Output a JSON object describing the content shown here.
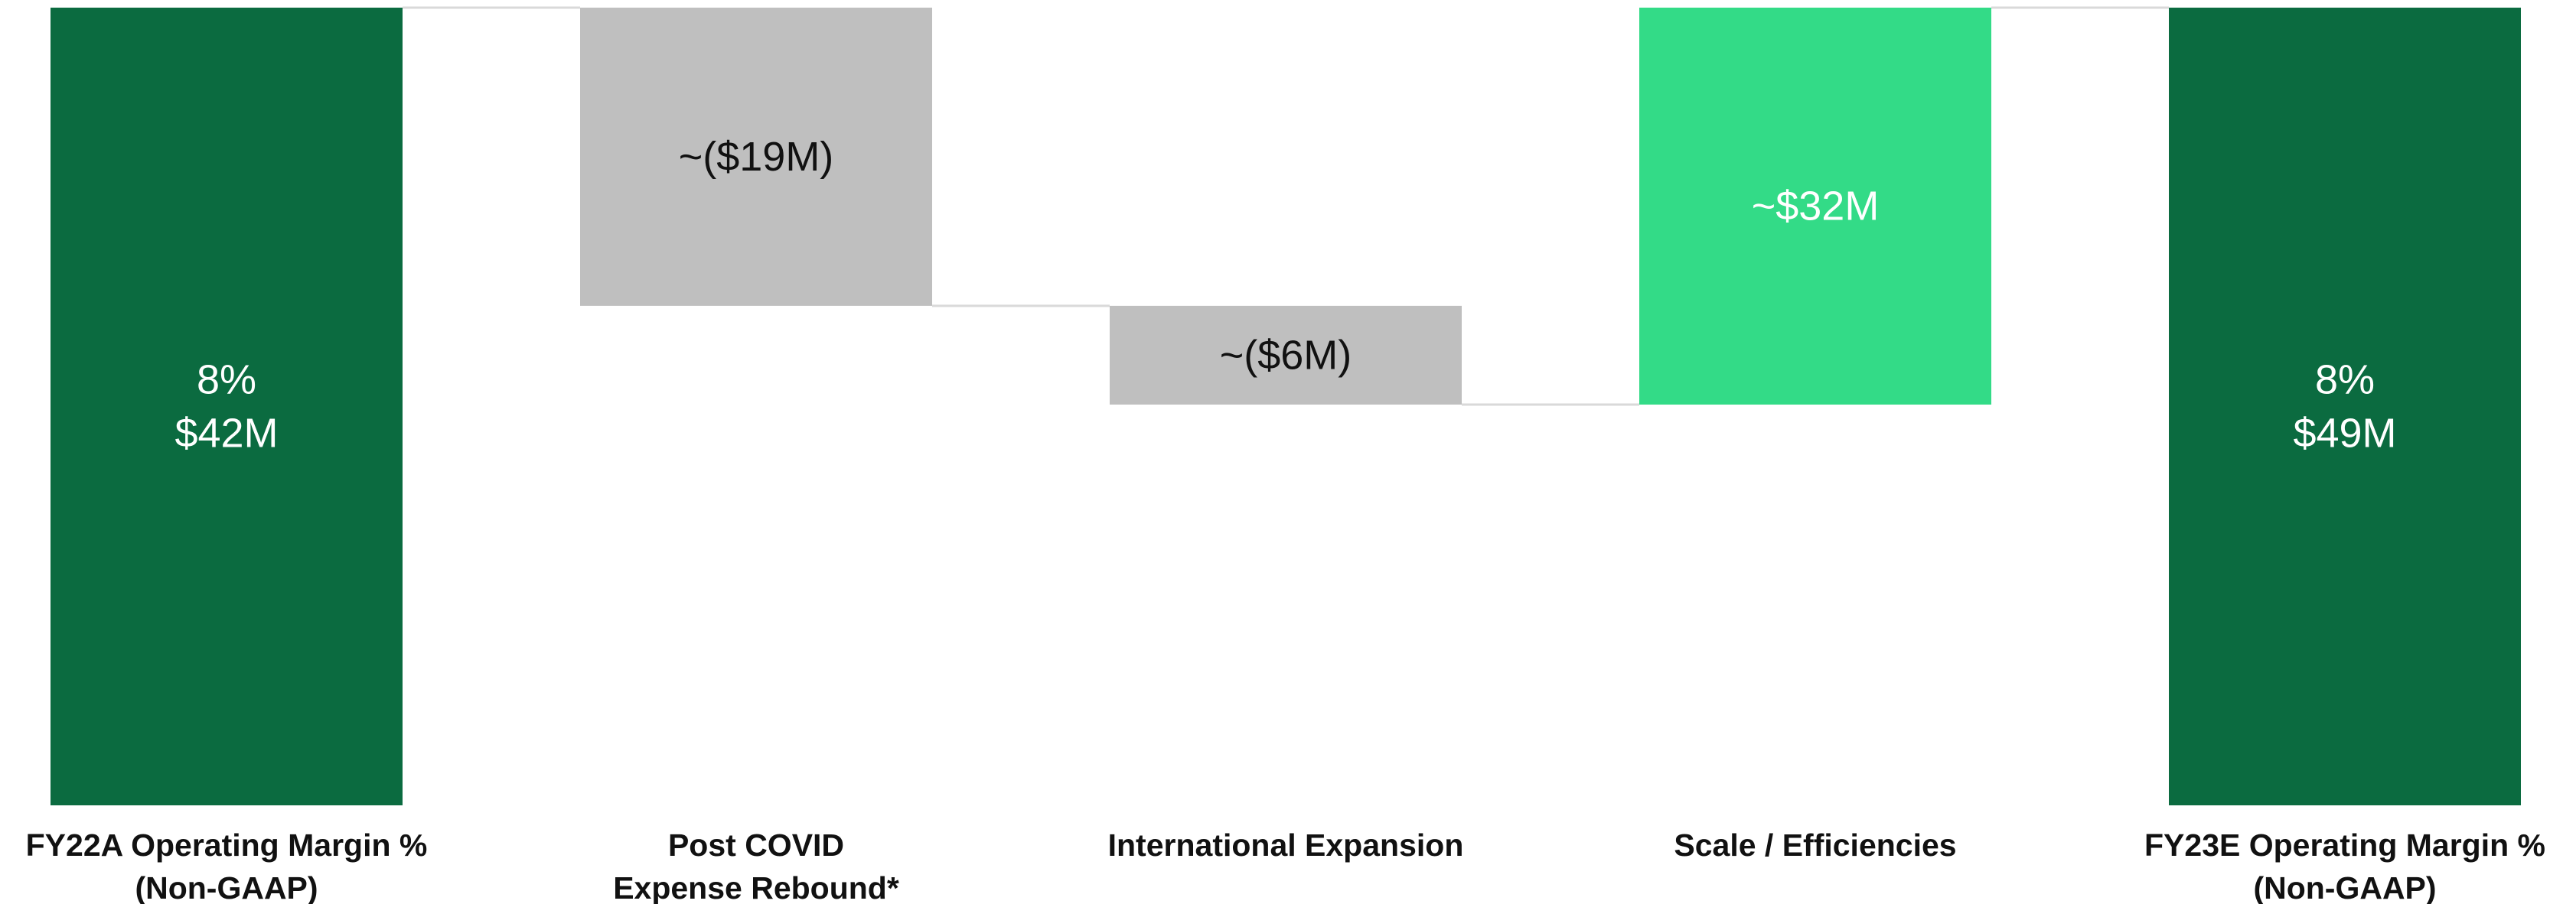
{
  "chart_data": {
    "type": "bar",
    "subtype": "waterfall",
    "categories": [
      [
        "FY22A Operating Margin %",
        "(Non-GAAP)"
      ],
      [
        "Post COVID",
        "Expense Rebound*"
      ],
      [
        "International Expansion"
      ],
      [
        "Scale / Efficiencies"
      ],
      [
        "FY23E Operating Margin %",
        "(Non-GAAP)"
      ]
    ],
    "bars": [
      {
        "kind": "total",
        "start": 0,
        "end": 42,
        "labels": [
          "8%",
          "$42M"
        ],
        "color": "#0B6B40",
        "label_color": "#ffffff"
      },
      {
        "kind": "delta",
        "start": 42,
        "end": 26.3,
        "labels": [
          "~($19M)"
        ],
        "color": "#BFBFBF",
        "label_color": "#111111"
      },
      {
        "kind": "delta",
        "start": 26.3,
        "end": 21.1,
        "labels": [
          "~($6M)"
        ],
        "color": "#BFBFBF",
        "label_color": "#111111"
      },
      {
        "kind": "delta",
        "start": 21.1,
        "end": 42,
        "labels": [
          "~$32M"
        ],
        "color": "#33DB87",
        "label_color": "#ffffff"
      },
      {
        "kind": "total",
        "start": 0,
        "end": 42,
        "labels": [
          "8%",
          "$49M"
        ],
        "color": "#0B6B40",
        "label_color": "#ffffff"
      }
    ],
    "ylim": [
      0,
      42
    ],
    "grid": false,
    "legend": "none"
  }
}
